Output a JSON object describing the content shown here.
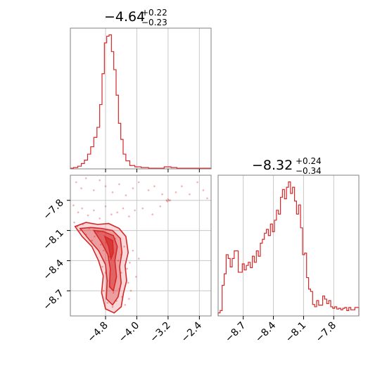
{
  "colors": {
    "series": "#d62728",
    "grid": "#c8c8c8",
    "frame": "#808080"
  },
  "chart_data": [
    {
      "type": "histogram",
      "panel": "top-left",
      "title": {
        "main": "−4.64",
        "plus": "+0.22",
        "minus": "−0.23"
      },
      "xlim": [
        -5.7,
        -2.1
      ],
      "xticks": [
        -4.8,
        -4.0,
        -3.2,
        -2.4
      ],
      "show_tick_labels": false,
      "bins": [
        {
          "x": -5.68,
          "y": 1
        },
        {
          "x": -5.56,
          "y": 2
        },
        {
          "x": -5.46,
          "y": 4
        },
        {
          "x": -5.38,
          "y": 8
        },
        {
          "x": -5.3,
          "y": 13
        },
        {
          "x": -5.22,
          "y": 22
        },
        {
          "x": -5.14,
          "y": 33
        },
        {
          "x": -5.06,
          "y": 47
        },
        {
          "x": -4.98,
          "y": 62
        },
        {
          "x": -4.92,
          "y": 96
        },
        {
          "x": -4.86,
          "y": 142
        },
        {
          "x": -4.8,
          "y": 188
        },
        {
          "x": -4.74,
          "y": 198
        },
        {
          "x": -4.68,
          "y": 200
        },
        {
          "x": -4.62,
          "y": 175
        },
        {
          "x": -4.56,
          "y": 148
        },
        {
          "x": -4.5,
          "y": 110
        },
        {
          "x": -4.44,
          "y": 68
        },
        {
          "x": -4.38,
          "y": 44
        },
        {
          "x": -4.32,
          "y": 22
        },
        {
          "x": -4.24,
          "y": 12
        },
        {
          "x": -4.12,
          "y": 5
        },
        {
          "x": -3.98,
          "y": 3
        },
        {
          "x": -3.8,
          "y": 2
        },
        {
          "x": -3.6,
          "y": 1
        },
        {
          "x": -3.4,
          "y": 1
        },
        {
          "x": -3.2,
          "y": 3
        },
        {
          "x": -3.05,
          "y": 2
        },
        {
          "x": -2.9,
          "y": 1
        },
        {
          "x": -2.7,
          "y": 1
        },
        {
          "x": -2.5,
          "y": 1
        },
        {
          "x": -2.3,
          "y": 1
        },
        {
          "x": -2.15,
          "y": 1
        }
      ]
    },
    {
      "type": "histogram",
      "panel": "bottom-right",
      "title": {
        "main": "−8.32",
        "plus": "+0.24",
        "minus": "−0.34"
      },
      "xlim": [
        -8.95,
        -7.55
      ],
      "xticks": [
        -8.7,
        -8.4,
        -8.1,
        -7.8
      ],
      "xticklabels": [
        "−8.7",
        "−8.4",
        "−8.1",
        "−7.8"
      ],
      "bins": [
        {
          "x": -8.94,
          "y": 4
        },
        {
          "x": -8.92,
          "y": 7
        },
        {
          "x": -8.9,
          "y": 40
        },
        {
          "x": -8.88,
          "y": 55
        },
        {
          "x": -8.86,
          "y": 80
        },
        {
          "x": -8.84,
          "y": 75
        },
        {
          "x": -8.82,
          "y": 64
        },
        {
          "x": -8.8,
          "y": 75
        },
        {
          "x": -8.78,
          "y": 85
        },
        {
          "x": -8.76,
          "y": 85
        },
        {
          "x": -8.74,
          "y": 57
        },
        {
          "x": -8.72,
          "y": 57
        },
        {
          "x": -8.7,
          "y": 68
        },
        {
          "x": -8.68,
          "y": 60
        },
        {
          "x": -8.66,
          "y": 66
        },
        {
          "x": -8.64,
          "y": 70
        },
        {
          "x": -8.62,
          "y": 63
        },
        {
          "x": -8.6,
          "y": 78
        },
        {
          "x": -8.58,
          "y": 70
        },
        {
          "x": -8.56,
          "y": 85
        },
        {
          "x": -8.54,
          "y": 78
        },
        {
          "x": -8.52,
          "y": 95
        },
        {
          "x": -8.5,
          "y": 100
        },
        {
          "x": -8.48,
          "y": 108
        },
        {
          "x": -8.46,
          "y": 113
        },
        {
          "x": -8.44,
          "y": 105
        },
        {
          "x": -8.42,
          "y": 120
        },
        {
          "x": -8.4,
          "y": 110
        },
        {
          "x": -8.38,
          "y": 125
        },
        {
          "x": -8.36,
          "y": 138
        },
        {
          "x": -8.34,
          "y": 133
        },
        {
          "x": -8.32,
          "y": 155
        },
        {
          "x": -8.3,
          "y": 165
        },
        {
          "x": -8.28,
          "y": 153
        },
        {
          "x": -8.26,
          "y": 168
        },
        {
          "x": -8.24,
          "y": 175
        },
        {
          "x": -8.22,
          "y": 160
        },
        {
          "x": -8.2,
          "y": 168
        },
        {
          "x": -8.18,
          "y": 150
        },
        {
          "x": -8.16,
          "y": 133
        },
        {
          "x": -8.14,
          "y": 145
        },
        {
          "x": -8.12,
          "y": 115
        },
        {
          "x": -8.1,
          "y": 80
        },
        {
          "x": -8.08,
          "y": 82
        },
        {
          "x": -8.06,
          "y": 50
        },
        {
          "x": -8.04,
          "y": 35
        },
        {
          "x": -8.02,
          "y": 32
        },
        {
          "x": -8.0,
          "y": 15
        },
        {
          "x": -7.98,
          "y": 12
        },
        {
          "x": -7.96,
          "y": 20
        },
        {
          "x": -7.94,
          "y": 14
        },
        {
          "x": -7.92,
          "y": 14
        },
        {
          "x": -7.9,
          "y": 26
        },
        {
          "x": -7.88,
          "y": 22
        },
        {
          "x": -7.86,
          "y": 16
        },
        {
          "x": -7.84,
          "y": 20
        },
        {
          "x": -7.82,
          "y": 12
        },
        {
          "x": -7.8,
          "y": 10
        },
        {
          "x": -7.78,
          "y": 12
        },
        {
          "x": -7.76,
          "y": 9
        },
        {
          "x": -7.74,
          "y": 10
        },
        {
          "x": -7.72,
          "y": 8
        },
        {
          "x": -7.7,
          "y": 10
        },
        {
          "x": -7.68,
          "y": 11
        },
        {
          "x": -7.66,
          "y": 7
        },
        {
          "x": -7.64,
          "y": 11
        },
        {
          "x": -7.62,
          "y": 8
        },
        {
          "x": -7.6,
          "y": 8
        },
        {
          "x": -7.58,
          "y": 11
        }
      ]
    },
    {
      "type": "scatter",
      "panel": "bottom-left",
      "xlim": [
        -5.7,
        -2.1
      ],
      "ylim": [
        -8.95,
        -7.55
      ],
      "xticks": [
        -4.8,
        -4.0,
        -3.2,
        -2.4
      ],
      "xticklabels": [
        "−4.8",
        "−4.0",
        "−3.2",
        "−2.4"
      ],
      "yticks": [
        -7.8,
        -8.1,
        -8.4,
        -8.7
      ],
      "yticklabels": [
        "−7.8",
        "−8.1",
        "−8.4",
        "−8.7"
      ],
      "points": [
        [
          -5.55,
          -7.62
        ],
        [
          -5.42,
          -7.68
        ],
        [
          -5.3,
          -7.58
        ],
        [
          -5.1,
          -7.7
        ],
        [
          -4.95,
          -7.6
        ],
        [
          -4.8,
          -7.66
        ],
        [
          -4.62,
          -7.72
        ],
        [
          -4.45,
          -7.64
        ],
        [
          -4.28,
          -7.75
        ],
        [
          -4.1,
          -7.68
        ],
        [
          -3.95,
          -7.62
        ],
        [
          -3.7,
          -7.7
        ],
        [
          -3.55,
          -7.66
        ],
        [
          -3.35,
          -7.74
        ],
        [
          -3.18,
          -7.8
        ],
        [
          -3.2,
          -7.79
        ],
        [
          -3.22,
          -7.81
        ],
        [
          -3.15,
          -7.8
        ],
        [
          -3.24,
          -7.8
        ],
        [
          -3.0,
          -7.72
        ],
        [
          -2.85,
          -7.66
        ],
        [
          -2.65,
          -7.74
        ],
        [
          -2.45,
          -7.62
        ],
        [
          -2.3,
          -7.7
        ],
        [
          -2.2,
          -7.78
        ],
        [
          -5.62,
          -7.85
        ],
        [
          -5.5,
          -7.92
        ],
        [
          -5.4,
          -7.88
        ],
        [
          -5.25,
          -7.95
        ],
        [
          -5.1,
          -7.9
        ],
        [
          -4.95,
          -7.98
        ],
        [
          -4.8,
          -7.86
        ],
        [
          -4.65,
          -7.94
        ],
        [
          -4.5,
          -7.92
        ],
        [
          -4.35,
          -7.88
        ],
        [
          -4.2,
          -7.96
        ],
        [
          -4.05,
          -7.9
        ],
        [
          -3.85,
          -7.88
        ],
        [
          -3.6,
          -7.94
        ],
        [
          -3.4,
          -7.86
        ],
        [
          -5.6,
          -8.02
        ],
        [
          -5.52,
          -8.06
        ],
        [
          -5.45,
          -8.1
        ],
        [
          -5.38,
          -8.04
        ],
        [
          -5.3,
          -8.14
        ],
        [
          -5.22,
          -8.08
        ],
        [
          -5.15,
          -8.2
        ],
        [
          -5.08,
          -8.16
        ],
        [
          -5.0,
          -8.12
        ],
        [
          -4.92,
          -8.24
        ],
        [
          -4.85,
          -8.3
        ],
        [
          -4.78,
          -8.22
        ],
        [
          -4.7,
          -8.36
        ],
        [
          -4.62,
          -8.28
        ],
        [
          -4.55,
          -8.18
        ],
        [
          -4.48,
          -8.4
        ],
        [
          -4.4,
          -8.34
        ],
        [
          -4.32,
          -8.26
        ],
        [
          -4.25,
          -8.48
        ],
        [
          -4.18,
          -8.42
        ],
        [
          -4.1,
          -8.3
        ],
        [
          -4.02,
          -8.56
        ],
        [
          -3.95,
          -8.38
        ],
        [
          -4.88,
          -8.46
        ],
        [
          -4.8,
          -8.52
        ],
        [
          -4.75,
          -8.6
        ],
        [
          -4.68,
          -8.66
        ],
        [
          -4.6,
          -8.72
        ],
        [
          -4.52,
          -8.8
        ],
        [
          -4.45,
          -8.68
        ],
        [
          -4.38,
          -8.76
        ],
        [
          -4.3,
          -8.84
        ],
        [
          -4.22,
          -8.62
        ],
        [
          -4.15,
          -8.7
        ],
        [
          -4.75,
          -8.82
        ],
        [
          -4.62,
          -8.86
        ],
        [
          -4.55,
          -8.6
        ],
        [
          -4.85,
          -8.7
        ],
        [
          -4.4,
          -8.52
        ],
        [
          -4.2,
          -8.78
        ]
      ],
      "contours": [
        [
          [
            -5.58,
            -8.06
          ],
          [
            -5.3,
            -8.02
          ],
          [
            -5.0,
            -8.04
          ],
          [
            -4.72,
            -8.03
          ],
          [
            -4.45,
            -8.08
          ],
          [
            -4.28,
            -8.16
          ],
          [
            -4.22,
            -8.32
          ],
          [
            -4.3,
            -8.45
          ],
          [
            -4.26,
            -8.6
          ],
          [
            -4.34,
            -8.72
          ],
          [
            -4.4,
            -8.86
          ],
          [
            -4.58,
            -8.92
          ],
          [
            -4.8,
            -8.88
          ],
          [
            -4.9,
            -8.72
          ],
          [
            -4.86,
            -8.55
          ],
          [
            -4.98,
            -8.4
          ],
          [
            -5.15,
            -8.26
          ],
          [
            -5.4,
            -8.16
          ],
          [
            -5.58,
            -8.06
          ]
        ],
        [
          [
            -5.45,
            -8.08
          ],
          [
            -5.18,
            -8.07
          ],
          [
            -4.9,
            -8.08
          ],
          [
            -4.62,
            -8.1
          ],
          [
            -4.42,
            -8.18
          ],
          [
            -4.38,
            -8.32
          ],
          [
            -4.44,
            -8.46
          ],
          [
            -4.4,
            -8.62
          ],
          [
            -4.48,
            -8.76
          ],
          [
            -4.62,
            -8.84
          ],
          [
            -4.78,
            -8.78
          ],
          [
            -4.76,
            -8.6
          ],
          [
            -4.8,
            -8.44
          ],
          [
            -4.98,
            -8.3
          ],
          [
            -5.2,
            -8.2
          ],
          [
            -5.45,
            -8.08
          ]
        ],
        [
          [
            -5.1,
            -8.1
          ],
          [
            -4.86,
            -8.11
          ],
          [
            -4.6,
            -8.15
          ],
          [
            -4.5,
            -8.26
          ],
          [
            -4.56,
            -8.4
          ],
          [
            -4.52,
            -8.56
          ],
          [
            -4.6,
            -8.7
          ],
          [
            -4.7,
            -8.66
          ],
          [
            -4.68,
            -8.48
          ],
          [
            -4.74,
            -8.34
          ],
          [
            -4.9,
            -8.22
          ],
          [
            -5.1,
            -8.1
          ]
        ],
        [
          [
            -4.82,
            -8.16
          ],
          [
            -4.62,
            -8.2
          ],
          [
            -4.6,
            -8.32
          ],
          [
            -4.66,
            -8.38
          ],
          [
            -4.72,
            -8.26
          ],
          [
            -4.82,
            -8.16
          ]
        ]
      ]
    }
  ]
}
